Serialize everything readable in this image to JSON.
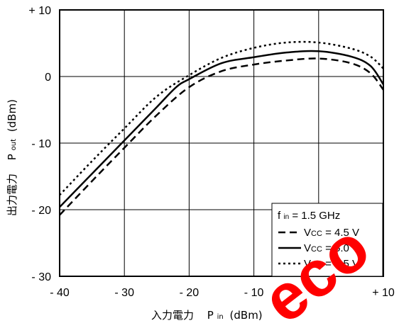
{
  "chart_data": {
    "type": "line",
    "xlabel": "入力電力　Pin (dBm)",
    "xlabel_main": "入力電力",
    "xlabel_sym": "P",
    "xlabel_sub": "in",
    "xlabel_unit": "(dBm)",
    "ylabel_main": "出力電力",
    "ylabel_sym": "P",
    "ylabel_sub": "out",
    "ylabel_unit": "(dBm)",
    "xlim": [
      -40,
      10
    ],
    "ylim": [
      -30,
      10
    ],
    "xticks": [
      -40,
      -30,
      -20,
      -10,
      0,
      10
    ],
    "yticks": [
      -30,
      -20,
      -10,
      0,
      10
    ],
    "xtick_labels": [
      "- 40",
      "- 30",
      "- 20",
      "- 10",
      "0",
      "+ 10"
    ],
    "ytick_labels": [
      "- 30",
      "- 20",
      "- 10",
      "0",
      "+ 10"
    ],
    "grid": true,
    "legend_position": "bottom-right",
    "legend_header": {
      "symbol": "f",
      "sub": "in",
      "text": " = 1.5 GHz"
    },
    "series": [
      {
        "name": "VCC = 4.5 V",
        "label_main": "V",
        "label_sub": "CC",
        "label_value": " = 4.5 V",
        "style": "dashed",
        "x": [
          -40,
          -35,
          -30,
          -25,
          -20,
          -15,
          -10,
          -5,
          0,
          5,
          8,
          10
        ],
        "y": [
          -20.8,
          -15.7,
          -10.7,
          -5.8,
          -1.6,
          0.8,
          1.8,
          2.4,
          2.7,
          2.0,
          0.5,
          -2.0
        ]
      },
      {
        "name": "VCC = 5.0 V",
        "label_main": "V",
        "label_sub": "CC",
        "label_value": " = 5.0 V",
        "style": "solid",
        "x": [
          -40,
          -35,
          -30,
          -25,
          -22,
          -20,
          -15,
          -10,
          -5,
          0,
          5,
          8,
          10
        ],
        "y": [
          -19.6,
          -14.6,
          -9.6,
          -4.6,
          -1.6,
          -0.4,
          2.0,
          2.9,
          3.6,
          3.8,
          3.0,
          1.6,
          -1.2
        ]
      },
      {
        "name": "VCC = 5.5 V",
        "label_main": "V",
        "label_sub": "CC",
        "label_value": " = 5.5 V",
        "style": "dotted",
        "x": [
          -40,
          -35,
          -30,
          -25,
          -20,
          -15,
          -10,
          -5,
          0,
          5,
          8,
          10
        ],
        "y": [
          -17.8,
          -12.7,
          -7.8,
          -3.0,
          0.2,
          2.8,
          4.3,
          5.1,
          5.1,
          4.2,
          3.0,
          1.2
        ]
      }
    ]
  },
  "watermark": {
    "text": "eco",
    "color": "#ff0000"
  }
}
